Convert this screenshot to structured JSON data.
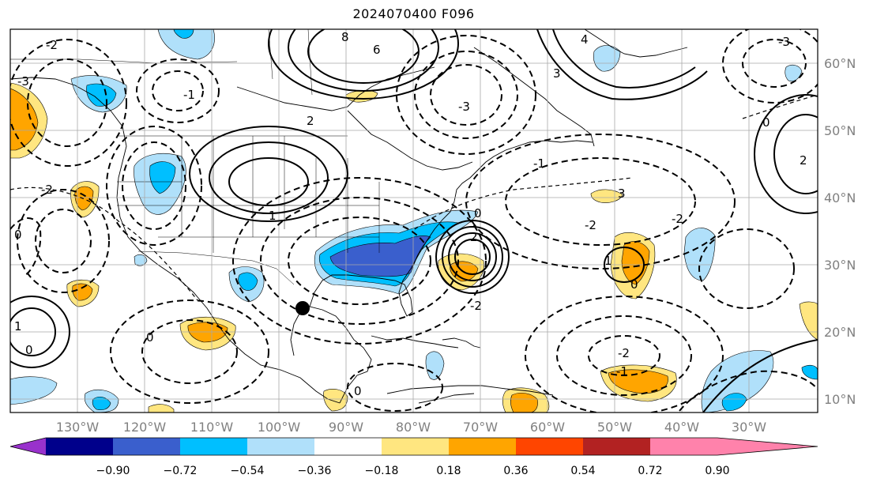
{
  "title": "2024070400 F096",
  "map": {
    "projection": "PlateCarree",
    "lon_range": [
      -138,
      -18
    ],
    "lat_range": [
      8,
      65
    ],
    "gridlines": true,
    "lat_labels": [
      "10°N",
      "20°N",
      "30°N",
      "40°N",
      "50°N",
      "60°N"
    ],
    "lon_labels": [
      "130°W",
      "120°W",
      "110°W",
      "100°W",
      "90°W",
      "80°W",
      "70°W",
      "60°W",
      "50°W",
      "40°W",
      "30°W"
    ],
    "marker": {
      "name": "storm-center",
      "lon": -93.5,
      "lat": 23.5,
      "color": "#000000"
    },
    "contour_labels": [
      "-3",
      "-2",
      "-1",
      "0",
      "1",
      "2",
      "3",
      "4",
      "6",
      "8"
    ]
  },
  "colorbar": {
    "ticks": [
      "−0.90",
      "−0.72",
      "−0.54",
      "−0.36",
      "−0.18",
      "0.18",
      "0.36",
      "0.54",
      "0.72",
      "0.90"
    ],
    "colors": [
      "#9932cc",
      "#00008b",
      "#3a5fcd",
      "#00bfff",
      "#b0e0fa",
      "#ffffff",
      "#ffe680",
      "#ffa500",
      "#ff4500",
      "#b22222",
      "#ff82ab"
    ],
    "extend": "both"
  },
  "colors": {
    "land_line": "#000000",
    "grid": "#a9a9a9",
    "positive_anomaly": "#ffa500",
    "negative_anomaly": "#3a5fcd"
  }
}
